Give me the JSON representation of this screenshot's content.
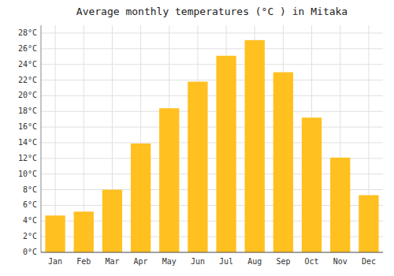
{
  "chart_data": {
    "type": "bar",
    "title": "Average monthly temperatures (°C ) in Mitaka",
    "categories": [
      "Jan",
      "Feb",
      "Mar",
      "Apr",
      "May",
      "Jun",
      "Jul",
      "Aug",
      "Sep",
      "Oct",
      "Nov",
      "Dec"
    ],
    "values": [
      4.7,
      5.2,
      8.0,
      13.9,
      18.4,
      21.8,
      25.1,
      27.1,
      23.0,
      17.2,
      12.1,
      7.3
    ],
    "color": "#FFC020",
    "ylim": [
      0,
      29
    ],
    "yticks": [
      {
        "value": 0,
        "label": "0°C"
      },
      {
        "value": 2,
        "label": "2°C"
      },
      {
        "value": 4,
        "label": "4°C"
      },
      {
        "value": 6,
        "label": "6°C"
      },
      {
        "value": 8,
        "label": "8°C"
      },
      {
        "value": 10,
        "label": "10°C"
      },
      {
        "value": 12,
        "label": "12°C"
      },
      {
        "value": 14,
        "label": "14°C"
      },
      {
        "value": 16,
        "label": "16°C"
      },
      {
        "value": 18,
        "label": "18°C"
      },
      {
        "value": 20,
        "label": "20°C"
      },
      {
        "value": 22,
        "label": "22°C"
      },
      {
        "value": 24,
        "label": "24°C"
      },
      {
        "value": 26,
        "label": "26°C"
      },
      {
        "value": 28,
        "label": "28°C"
      }
    ],
    "grid": true
  }
}
